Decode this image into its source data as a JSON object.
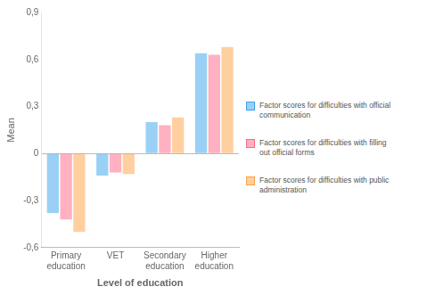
{
  "chart_data": {
    "type": "bar",
    "categories": [
      "Primary\neducation",
      "VET",
      "Secondary\neducation",
      "Higher\neducation"
    ],
    "series": [
      {
        "name": "Factor scores for difficulties with official\ncommunication",
        "values": [
          -0.38,
          -0.14,
          0.2,
          0.64
        ]
      },
      {
        "name": "Factor scores for difficulties with filling\nout official forms",
        "values": [
          -0.42,
          -0.12,
          0.18,
          0.63
        ]
      },
      {
        "name": "Factor scores for difficulties with public\nadministration",
        "values": [
          -0.5,
          -0.13,
          0.23,
          0.68
        ]
      }
    ],
    "xlabel": "Level of education",
    "ylabel": "Mean",
    "ylim": [
      -0.6,
      0.9
    ],
    "yticks": [
      {
        "value": -0.6,
        "label": "-0,6"
      },
      {
        "value": -0.3,
        "label": "-0,3"
      },
      0,
      {
        "value": 0.3,
        "label": "0,3"
      },
      {
        "value": 0.6,
        "label": "0,6"
      },
      {
        "value": 0.9,
        "label": "0,9"
      }
    ],
    "grid": false,
    "legend": "right"
  }
}
